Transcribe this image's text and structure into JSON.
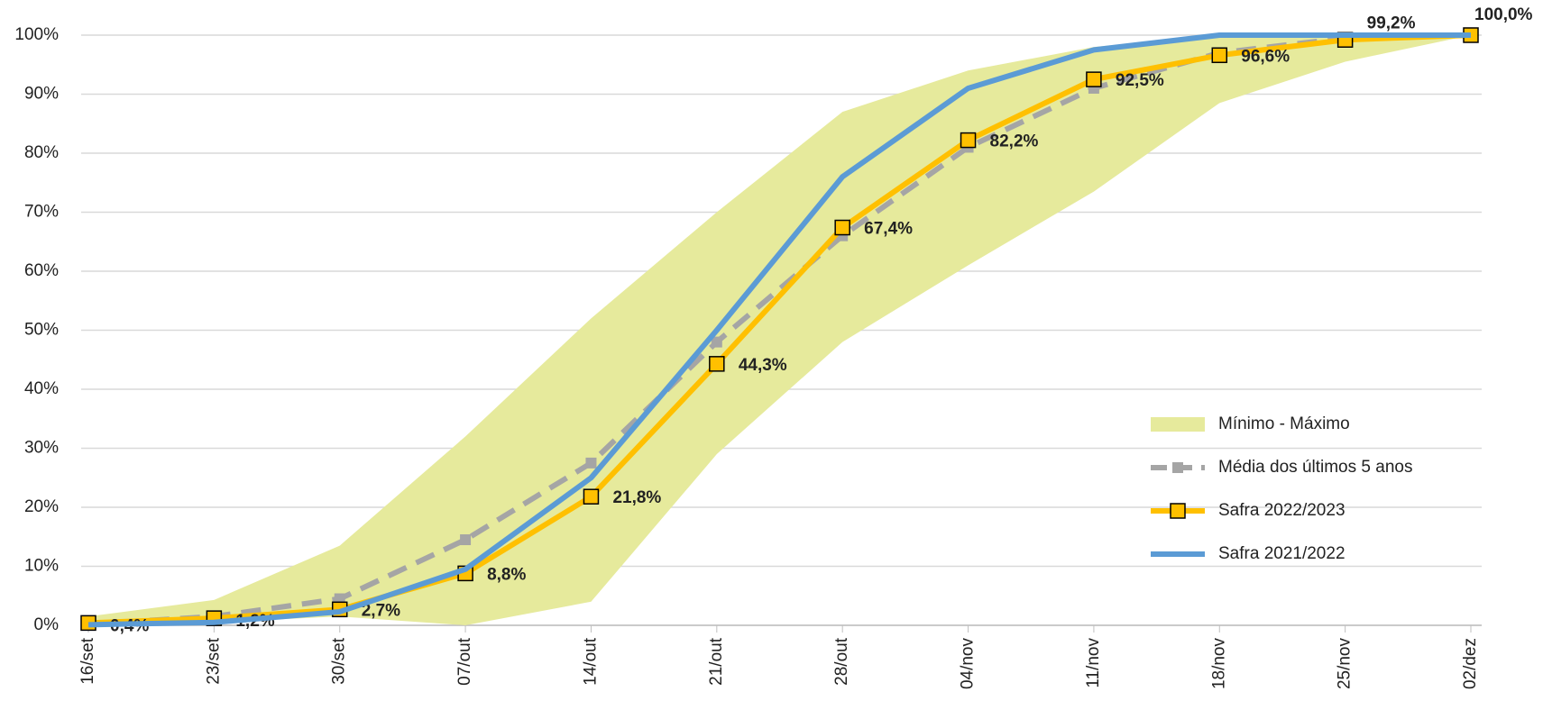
{
  "chart_data": {
    "type": "line",
    "categories": [
      "16/set",
      "23/set",
      "30/set",
      "07/out",
      "14/out",
      "21/out",
      "28/out",
      "04/nov",
      "11/nov",
      "18/nov",
      "25/nov",
      "02/dez"
    ],
    "ylim": [
      0,
      100
    ],
    "yticks": [
      {
        "value": 0,
        "label": "0%"
      },
      {
        "value": 10,
        "label": "10%"
      },
      {
        "value": 20,
        "label": "20%"
      },
      {
        "value": 30,
        "label": "30%"
      },
      {
        "value": 40,
        "label": "40%"
      },
      {
        "value": 50,
        "label": "50%"
      },
      {
        "value": 60,
        "label": "60%"
      },
      {
        "value": 70,
        "label": "70%"
      },
      {
        "value": 80,
        "label": "80%"
      },
      {
        "value": 90,
        "label": "90%"
      },
      {
        "value": 100,
        "label": "100%"
      }
    ],
    "grid": true,
    "series": [
      {
        "name": "Mínimo - Máximo",
        "color": "#e6ea9c",
        "kind": "range",
        "min": [
          0,
          0.5,
          1.5,
          0,
          4,
          29,
          48,
          61,
          73.5,
          88.5,
          95.5,
          100
        ],
        "max": [
          1.5,
          4.3,
          13.5,
          32,
          52,
          70,
          87,
          94,
          98,
          100,
          100,
          100
        ]
      },
      {
        "name": "Média dos últimos 5 anos",
        "color": "#a5a5a5",
        "kind": "dashed",
        "values": [
          0.2,
          1.5,
          4.5,
          14.5,
          27.5,
          48,
          66,
          81,
          91,
          97,
          99.5,
          100
        ]
      },
      {
        "name": "Safra 2022/2023",
        "color": "#ffc000",
        "kind": "marked",
        "values": [
          0.4,
          1.2,
          2.7,
          8.8,
          21.8,
          44.3,
          67.4,
          82.2,
          92.5,
          96.6,
          99.2,
          100.0
        ],
        "value_labels": [
          "0,4%",
          "1,2%",
          "2,7%",
          "8,8%",
          "21,8%",
          "44,3%",
          "67,4%",
          "82,2%",
          "92,5%",
          "96,6%",
          "99,2%",
          "100,0%"
        ]
      },
      {
        "name": "Safra 2021/2022",
        "color": "#5b9bd5",
        "kind": "plain",
        "values": [
          0.1,
          0.5,
          2.3,
          9.5,
          25,
          50,
          76,
          91,
          97.5,
          100,
          100,
          100
        ]
      }
    ]
  }
}
